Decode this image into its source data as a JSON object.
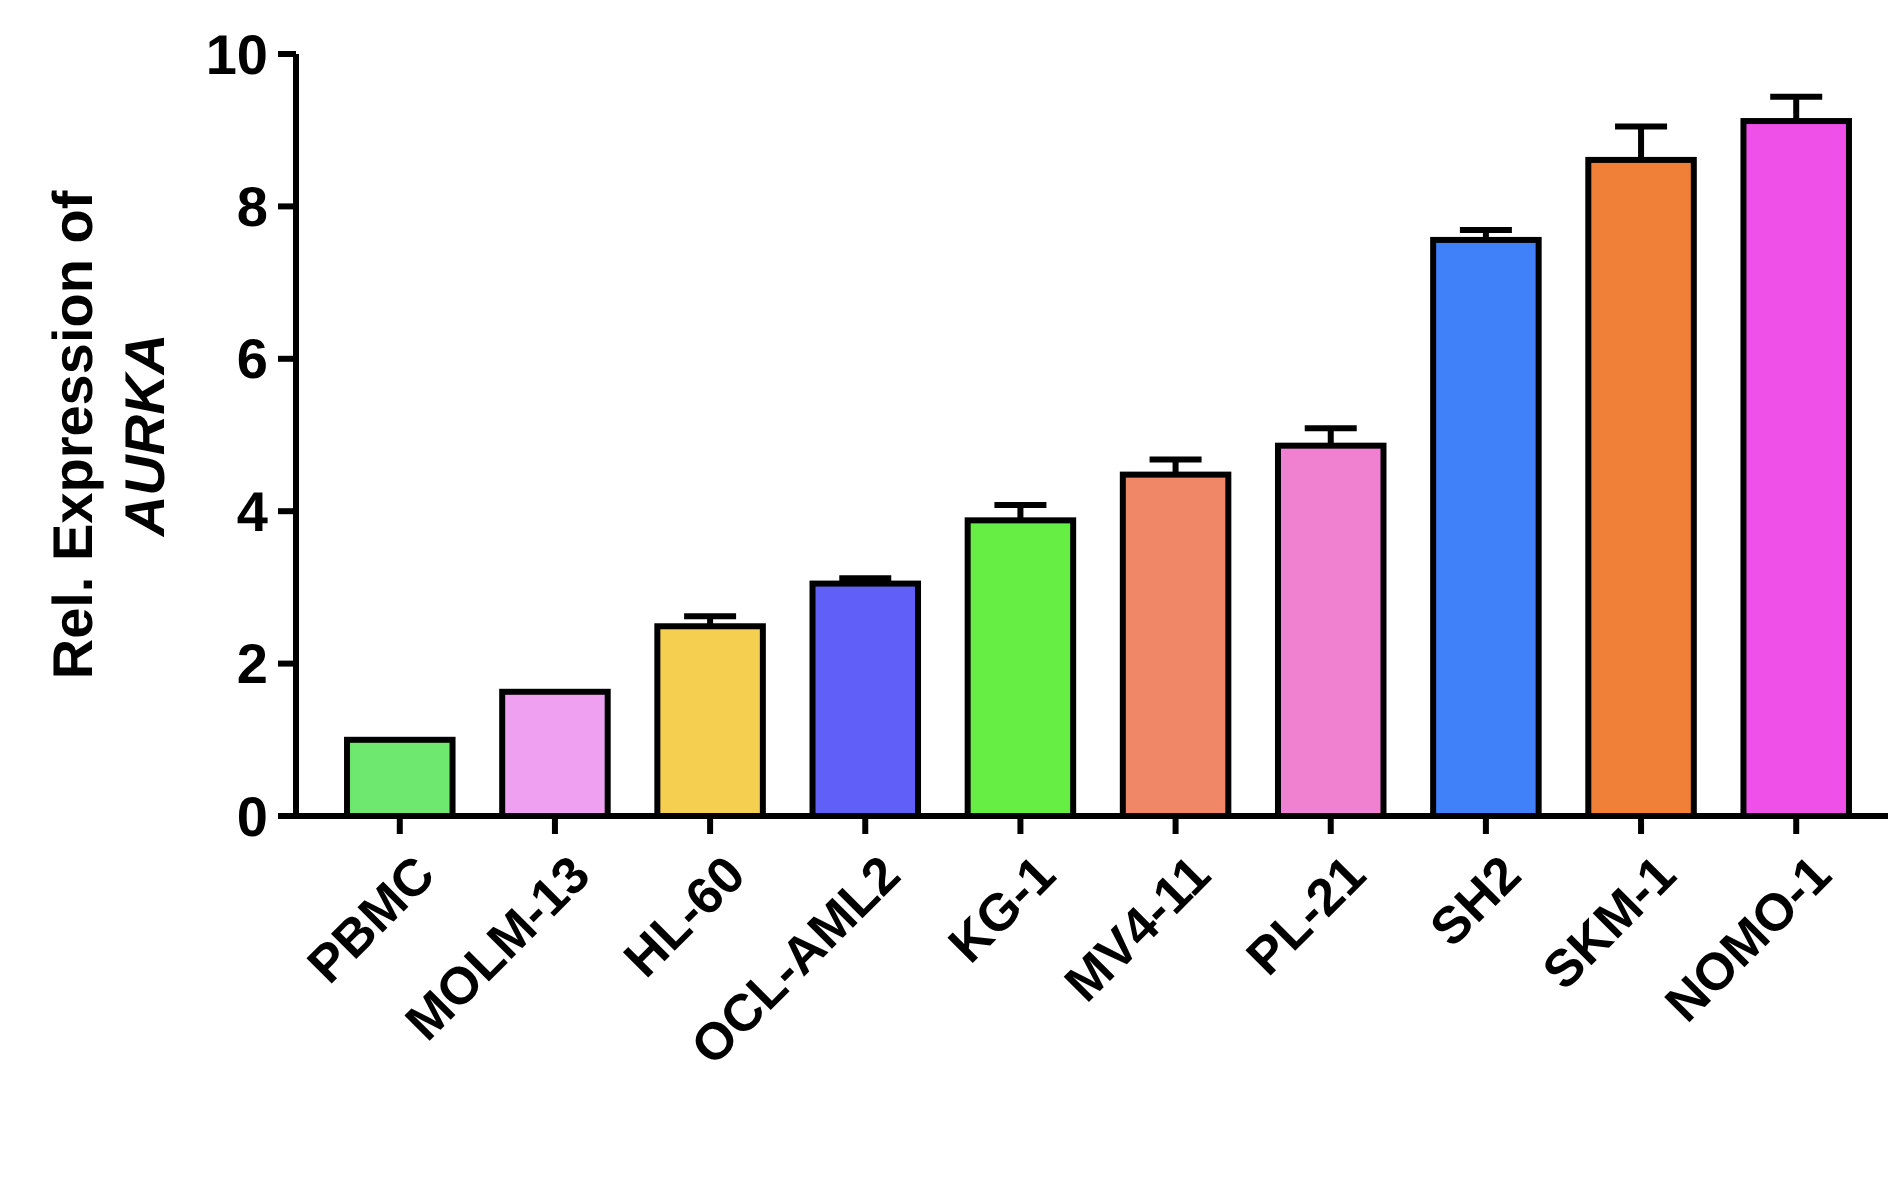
{
  "chart_data": {
    "type": "bar",
    "ylabel": "Rel. Expression of AURKA",
    "categories": [
      "PBMC",
      "MOLM-13",
      "HL-60",
      "OCL-AML2",
      "KG-1",
      "MV4-11",
      "PL-21",
      "SH2",
      "SKM-1",
      "NOMO-1"
    ],
    "values": [
      1.0,
      1.63,
      2.49,
      3.05,
      3.88,
      4.48,
      4.86,
      7.56,
      8.61,
      9.12
    ],
    "errors": [
      null,
      null,
      0.13,
      0.07,
      0.2,
      0.2,
      0.23,
      0.13,
      0.44,
      0.32
    ],
    "colors": [
      "#6ee86e",
      "#f0a0f0",
      "#f5d050",
      "#6060f8",
      "#66ee44",
      "#f08868",
      "#f080d0",
      "#4080f8",
      "#f08038",
      "#ee50e8"
    ],
    "ylim": [
      0,
      10
    ],
    "yticks": [
      0,
      2,
      4,
      6,
      8,
      10
    ],
    "grid": false
  }
}
